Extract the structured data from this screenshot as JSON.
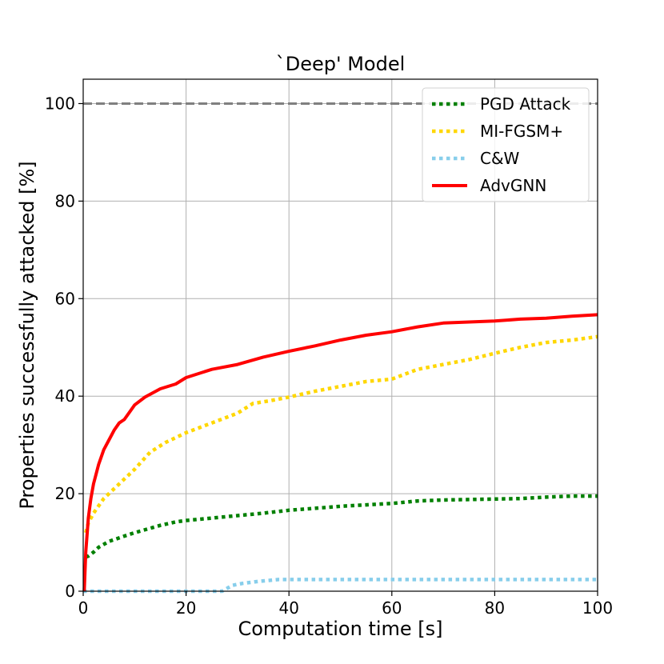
{
  "chart_data": {
    "type": "line",
    "title": "`Deep' Model",
    "xlabel": "Computation time [s]",
    "ylabel": "Properties successfully attacked [%]",
    "xlim": [
      0,
      100
    ],
    "ylim": [
      0,
      105
    ],
    "xticks": [
      0,
      20,
      40,
      60,
      80,
      100
    ],
    "yticks": [
      0,
      20,
      40,
      60,
      80,
      100
    ],
    "xtick_labels": [
      "0",
      "20",
      "40",
      "60",
      "80",
      "100"
    ],
    "ytick_labels": [
      "0",
      "20",
      "40",
      "60",
      "80",
      "100"
    ],
    "grid": true,
    "legend_position": "top-right",
    "reference_line": {
      "y": 100,
      "color": "#808080",
      "style": "dashed"
    },
    "series": [
      {
        "name": "PGD Attack",
        "color": "#008000",
        "style": "dotted",
        "x": [
          0.5,
          1,
          2,
          3,
          5,
          8,
          10,
          15,
          18,
          20,
          25,
          30,
          35,
          40,
          45,
          50,
          55,
          60,
          65,
          70,
          75,
          80,
          85,
          90,
          95,
          100
        ],
        "y": [
          7,
          7.2,
          8,
          9,
          10.2,
          11.3,
          12,
          13.5,
          14.2,
          14.5,
          15,
          15.5,
          16,
          16.6,
          17,
          17.4,
          17.7,
          18,
          18.5,
          18.7,
          18.8,
          18.9,
          19,
          19.3,
          19.5,
          19.5
        ]
      },
      {
        "name": "MI-FGSM+",
        "color": "#ffd700",
        "style": "dotted",
        "x": [
          0.5,
          1,
          2,
          4,
          7,
          10,
          13,
          16,
          20,
          25,
          30,
          33,
          36,
          40,
          45,
          50,
          55,
          60,
          65,
          70,
          75,
          80,
          85,
          90,
          95,
          100
        ],
        "y": [
          12,
          14,
          16,
          19,
          22,
          25,
          28.5,
          30.5,
          32.5,
          34.5,
          36.5,
          38.5,
          39,
          39.8,
          41,
          42,
          43,
          43.5,
          45.5,
          46.5,
          47.5,
          48.8,
          50,
          51,
          51.5,
          52.2
        ]
      },
      {
        "name": "C&W",
        "color": "#87ceeb",
        "style": "dotted",
        "x": [
          0,
          20,
          27,
          29,
          31,
          34,
          38,
          40,
          60,
          80,
          100
        ],
        "y": [
          0,
          0,
          0,
          1.2,
          1.6,
          2,
          2.4,
          2.4,
          2.4,
          2.4,
          2.4
        ]
      },
      {
        "name": "AdvGNN",
        "color": "#ff0000",
        "style": "solid",
        "x": [
          0.2,
          0.5,
          1,
          1.5,
          2,
          3,
          4,
          5,
          6,
          7,
          8,
          10,
          12,
          15,
          18,
          20,
          25,
          30,
          35,
          40,
          45,
          50,
          55,
          60,
          65,
          70,
          75,
          80,
          85,
          90,
          95,
          100
        ],
        "y": [
          0,
          8,
          15,
          19,
          22,
          26,
          29,
          31,
          33,
          34.5,
          35.2,
          38.2,
          39.8,
          41.5,
          42.5,
          43.8,
          45.5,
          46.5,
          48,
          49.2,
          50.3,
          51.5,
          52.5,
          53.2,
          54.2,
          55,
          55.2,
          55.4,
          55.8,
          56,
          56.4,
          56.7
        ]
      }
    ]
  }
}
